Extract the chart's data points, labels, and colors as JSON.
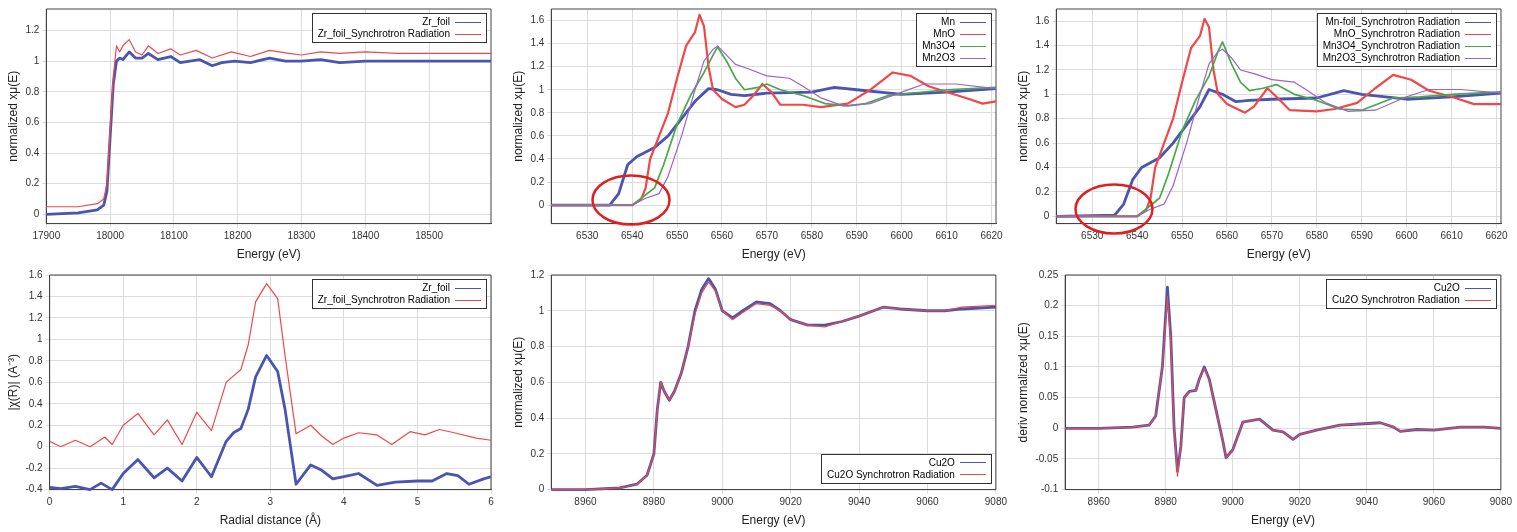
{
  "chart_data": [
    {
      "type": "line",
      "xlabel": "Energy (eV)",
      "ylabel": "normalized xμ(E)",
      "xlim": [
        17900,
        18597
      ],
      "xticks": [
        17900,
        18000,
        18100,
        18200,
        18300,
        18400,
        18500
      ],
      "ylim": [
        -0.06,
        1.34
      ],
      "yticks": [
        0,
        0.2,
        0.4,
        0.6,
        0.8,
        1,
        1.2
      ],
      "grid": true,
      "legend": "top right",
      "series": [
        {
          "name": "Zr_foil",
          "color": "#4a55b0",
          "x": [
            17900,
            17950,
            17980,
            17990,
            17995,
            18000,
            18005,
            18010,
            18015,
            18020,
            18030,
            18040,
            18050,
            18060,
            18075,
            18095,
            18110,
            18125,
            18140,
            18160,
            18175,
            18195,
            18220,
            18250,
            18275,
            18300,
            18330,
            18360,
            18400,
            18450,
            18500,
            18597
          ],
          "values": [
            0,
            0.01,
            0.03,
            0.06,
            0.15,
            0.5,
            0.85,
            1,
            1.02,
            1.01,
            1.06,
            1.02,
            1.02,
            1.05,
            1.01,
            1.03,
            0.99,
            1,
            1.01,
            0.97,
            0.99,
            1,
            0.99,
            1.02,
            1,
            1,
            1.01,
            0.99,
            1,
            1,
            1,
            1
          ]
        },
        {
          "name": "Zr_foil_Synchrotron Radiation",
          "color": "#f04848",
          "x": [
            17900,
            17950,
            17980,
            17990,
            17995,
            18000,
            18005,
            18010,
            18015,
            18020,
            18030,
            18040,
            18050,
            18060,
            18075,
            18095,
            18110,
            18135,
            18160,
            18190,
            18220,
            18250,
            18280,
            18300,
            18330,
            18360,
            18400,
            18450,
            18500,
            18597
          ],
          "values": [
            0.05,
            0.05,
            0.07,
            0.1,
            0.2,
            0.55,
            0.9,
            1.1,
            1.06,
            1.1,
            1.14,
            1.06,
            1.04,
            1.1,
            1.05,
            1.08,
            1.04,
            1.07,
            1.02,
            1.06,
            1.03,
            1.07,
            1.05,
            1.04,
            1.06,
            1.05,
            1.06,
            1.05,
            1.05,
            1.05
          ]
        }
      ]
    },
    {
      "type": "line",
      "xlabel": "Energy (eV)",
      "ylabel": "normalized xμ(E)",
      "xlim": [
        6522,
        6621
      ],
      "xticks": [
        6530,
        6540,
        6550,
        6560,
        6570,
        6580,
        6590,
        6600,
        6610,
        6620
      ],
      "ylim": [
        -0.16,
        1.7
      ],
      "yticks": [
        0,
        0.2,
        0.4,
        0.6,
        0.8,
        1,
        1.2,
        1.4,
        1.6
      ],
      "grid": true,
      "legend": "top right",
      "series": [
        {
          "name": "Mn",
          "color": "#4a55b0",
          "x": [
            6522,
            6535,
            6537,
            6539,
            6541,
            6545,
            6548,
            6551,
            6554,
            6557,
            6559,
            6562,
            6565,
            6570,
            6580,
            6585,
            6590,
            6600,
            6610,
            6621
          ],
          "values": [
            0,
            0,
            0.1,
            0.35,
            0.42,
            0.5,
            0.6,
            0.75,
            0.9,
            1.01,
            1,
            0.96,
            0.95,
            0.97,
            0.98,
            1.02,
            1,
            0.96,
            0.98,
            1.01
          ]
        },
        {
          "name": "MnO",
          "color": "#f04848",
          "x": [
            6522,
            6540,
            6542,
            6543,
            6544,
            6546,
            6548,
            6550,
            6552,
            6554,
            6555,
            6556,
            6557,
            6558,
            6560,
            6563,
            6565,
            6567,
            6569,
            6571,
            6573,
            6578,
            6582,
            6588,
            6593,
            6598,
            6602,
            6606,
            6610,
            6615,
            6618,
            6621
          ],
          "values": [
            0,
            0,
            0.05,
            0.15,
            0.4,
            0.6,
            0.8,
            1.1,
            1.38,
            1.5,
            1.65,
            1.55,
            1.2,
            1,
            0.92,
            0.85,
            0.87,
            0.95,
            1.05,
            0.98,
            0.87,
            0.87,
            0.85,
            0.88,
            1,
            1.15,
            1.12,
            1.03,
            0.98,
            0.92,
            0.88,
            0.9
          ]
        },
        {
          "name": "Mn3O4",
          "color": "#4aa84a",
          "x": [
            6522,
            6540,
            6542,
            6545,
            6547,
            6550,
            6553,
            6556,
            6558,
            6559,
            6561,
            6563,
            6565,
            6568,
            6570,
            6573,
            6578,
            6583,
            6588,
            6592,
            6597,
            6602,
            6610,
            6621
          ],
          "values": [
            0,
            0,
            0.06,
            0.15,
            0.35,
            0.7,
            0.95,
            1.15,
            1.3,
            1.37,
            1.25,
            1.1,
            1,
            1.02,
            1.05,
            1,
            0.95,
            0.88,
            0.86,
            0.88,
            0.95,
            0.97,
            1,
            1.02
          ]
        },
        {
          "name": "Mn2O3",
          "color": "#9a64c8",
          "x": [
            6522,
            6540,
            6543,
            6546,
            6548,
            6551,
            6554,
            6556,
            6558,
            6559,
            6561,
            6563,
            6566,
            6570,
            6575,
            6578,
            6582,
            6587,
            6593,
            6600,
            6605,
            6612,
            6621
          ],
          "values": [
            0,
            0,
            0.06,
            0.1,
            0.25,
            0.6,
            1,
            1.25,
            1.35,
            1.38,
            1.3,
            1.22,
            1.18,
            1.12,
            1.1,
            1.03,
            0.93,
            0.86,
            0.88,
            0.98,
            1.05,
            1.05,
            1.01
          ]
        }
      ]
    },
    {
      "type": "line",
      "xlabel": "Energy (eV)",
      "ylabel": "normalized xμ(E)",
      "xlim": [
        6522,
        6621
      ],
      "xticks": [
        6530,
        6540,
        6550,
        6560,
        6570,
        6580,
        6590,
        6600,
        6610,
        6620
      ],
      "ylim": [
        -0.06,
        1.7
      ],
      "yticks": [
        0,
        0.2,
        0.4,
        0.6,
        0.8,
        1,
        1.2,
        1.4,
        1.6
      ],
      "grid": true,
      "legend": "top right",
      "series": [
        {
          "name": "Mn-foil_Synchrotron Radiation",
          "color": "#4a55b0",
          "x": [
            6522,
            6535,
            6537,
            6539,
            6541,
            6545,
            6548,
            6551,
            6554,
            6556,
            6559,
            6562,
            6565,
            6570,
            6580,
            6586,
            6590,
            6600,
            6610,
            6621
          ],
          "values": [
            0,
            0.01,
            0.1,
            0.3,
            0.4,
            0.48,
            0.6,
            0.75,
            0.9,
            1.04,
            1,
            0.94,
            0.95,
            0.96,
            0.97,
            1.03,
            1,
            0.96,
            0.98,
            1.01
          ]
        },
        {
          "name": "MnO_Synchrotron Radiation",
          "color": "#f04848",
          "x": [
            6522,
            6540,
            6542,
            6543,
            6544,
            6546,
            6548,
            6550,
            6552,
            6554,
            6555,
            6556,
            6557,
            6558,
            6560,
            6564,
            6566,
            6568,
            6569,
            6571,
            6574,
            6580,
            6584,
            6589,
            6593,
            6597,
            6601,
            6605,
            6610,
            6615,
            6621
          ],
          "values": [
            0,
            0,
            0.05,
            0.15,
            0.4,
            0.6,
            0.8,
            1.1,
            1.38,
            1.48,
            1.62,
            1.55,
            1.2,
            1,
            0.92,
            0.85,
            0.9,
            1,
            1.05,
            0.98,
            0.87,
            0.86,
            0.88,
            0.93,
            1.05,
            1.16,
            1.12,
            1.03,
            0.98,
            0.92,
            0.92
          ]
        },
        {
          "name": "Mn3O4_Synchrotron Radiation",
          "color": "#4aa84a",
          "x": [
            6522,
            6540,
            6542,
            6545,
            6547,
            6550,
            6553,
            6556,
            6558,
            6559,
            6561,
            6563,
            6565,
            6568,
            6571,
            6575,
            6580,
            6585,
            6590,
            6597,
            6603,
            6610,
            6621
          ],
          "values": [
            0,
            0,
            0.06,
            0.15,
            0.35,
            0.7,
            0.95,
            1.15,
            1.35,
            1.43,
            1.25,
            1.1,
            1.03,
            1.05,
            1.08,
            1,
            0.95,
            0.88,
            0.87,
            0.97,
            0.98,
            1,
            1.02
          ]
        },
        {
          "name": "Mn2O3_Synchrotron Radiation",
          "color": "#9a64c8",
          "x": [
            6522,
            6540,
            6543,
            6546,
            6548,
            6551,
            6554,
            6556,
            6558,
            6559,
            6561,
            6563,
            6566,
            6570,
            6575,
            6578,
            6582,
            6587,
            6593,
            6600,
            6605,
            6612,
            6621
          ],
          "values": [
            0,
            0,
            0.06,
            0.1,
            0.25,
            0.6,
            1,
            1.25,
            1.35,
            1.37,
            1.3,
            1.2,
            1.17,
            1.12,
            1.1,
            1.03,
            0.93,
            0.86,
            0.87,
            0.98,
            1.04,
            1.04,
            1.01
          ]
        }
      ]
    },
    {
      "type": "line",
      "xlabel": "Radial distance (Å)",
      "ylabel": "|χ(R)| (A⁻³)",
      "xlim": [
        0,
        6
      ],
      "xticks": [
        0,
        1,
        2,
        3,
        4,
        5,
        6
      ],
      "ylim": [
        -0.4,
        1.6
      ],
      "yticks": [
        -0.4,
        -0.2,
        0,
        0.2,
        0.4,
        0.6,
        0.8,
        1,
        1.2,
        1.4,
        1.6
      ],
      "grid": true,
      "legend": "top right",
      "series": [
        {
          "name": "Zr_foil",
          "color": "#4a55b0",
          "x": [
            0,
            0.15,
            0.35,
            0.55,
            0.7,
            0.85,
            1,
            1.2,
            1.42,
            1.6,
            1.8,
            2,
            2.2,
            2.4,
            2.5,
            2.6,
            2.7,
            2.8,
            2.95,
            3.1,
            3.2,
            3.35,
            3.55,
            3.7,
            3.85,
            4,
            4.2,
            4.45,
            4.7,
            5,
            5.2,
            5.4,
            5.55,
            5.7,
            5.9,
            6
          ],
          "values": [
            -0.38,
            -0.39,
            -0.37,
            -0.4,
            -0.34,
            -0.4,
            -0.25,
            -0.12,
            -0.29,
            -0.2,
            -0.32,
            -0.1,
            -0.28,
            0.05,
            0.13,
            0.17,
            0.35,
            0.65,
            0.85,
            0.7,
            0.35,
            -0.35,
            -0.17,
            -0.22,
            -0.3,
            -0.28,
            -0.25,
            -0.36,
            -0.33,
            -0.32,
            -0.32,
            -0.25,
            -0.27,
            -0.35,
            -0.3,
            -0.28
          ]
        },
        {
          "name": "Zr_foil_Synchrotron Radiation",
          "color": "#f04848",
          "x": [
            0,
            0.15,
            0.35,
            0.55,
            0.75,
            0.85,
            1,
            1.2,
            1.42,
            1.6,
            1.8,
            2,
            2.2,
            2.4,
            2.5,
            2.6,
            2.7,
            2.8,
            2.95,
            3.1,
            3.2,
            3.35,
            3.55,
            3.7,
            3.85,
            4,
            4.2,
            4.45,
            4.65,
            4.9,
            5.1,
            5.3,
            5.5,
            5.8,
            6
          ],
          "values": [
            0.05,
            0,
            0.06,
            0,
            0.09,
            0.02,
            0.2,
            0.31,
            0.11,
            0.25,
            0.02,
            0.32,
            0.15,
            0.6,
            0.66,
            0.72,
            0.95,
            1.35,
            1.52,
            1.38,
            0.85,
            0.12,
            0.2,
            0.1,
            0.02,
            0.08,
            0.13,
            0.11,
            0.02,
            0.14,
            0.11,
            0.16,
            0.13,
            0.08,
            0.06
          ]
        }
      ]
    },
    {
      "type": "line",
      "xlabel": "Energy (eV)",
      "ylabel": "normalized xμ(E)",
      "xlim": [
        8950,
        9080
      ],
      "xticks": [
        8960,
        8980,
        9000,
        9020,
        9040,
        9060,
        9080
      ],
      "ylim": [
        0,
        1.2
      ],
      "yticks": [
        0,
        0.2,
        0.4,
        0.6,
        0.8,
        1,
        1.2
      ],
      "grid": true,
      "legend": "bottom right",
      "series": [
        {
          "name": "Cu2O",
          "color": "#4a55b0",
          "x": [
            8950,
            8960,
            8970,
            8975,
            8978,
            8980,
            8981,
            8982,
            8983,
            8984.5,
            8986,
            8988,
            8990,
            8992,
            8994,
            8996,
            8998,
            9000,
            9003,
            9006,
            9010,
            9014,
            9017,
            9020,
            9025,
            9030,
            9035,
            9040,
            9047,
            9052,
            9060,
            9065,
            9070,
            9080
          ],
          "values": [
            0,
            0,
            0.01,
            0.03,
            0.08,
            0.2,
            0.45,
            0.6,
            0.55,
            0.5,
            0.55,
            0.65,
            0.8,
            1,
            1.12,
            1.18,
            1.12,
            1,
            0.96,
            1,
            1.05,
            1.04,
            1,
            0.95,
            0.92,
            0.92,
            0.94,
            0.97,
            1.02,
            1.01,
            1,
            1,
            1.01,
            1.02
          ]
        },
        {
          "name": "Cu2O Synchrotron Radiation",
          "color": "#f04848",
          "x": [
            8950,
            8960,
            8970,
            8975,
            8978,
            8980,
            8981,
            8982,
            8983,
            8984.5,
            8986,
            8988,
            8990,
            8992,
            8994,
            8996,
            8998,
            9000,
            9003,
            9006,
            9010,
            9014,
            9017,
            9020,
            9025,
            9030,
            9035,
            9040,
            9047,
            9052,
            9060,
            9065,
            9070,
            9080
          ],
          "values": [
            0,
            0,
            0.01,
            0.03,
            0.08,
            0.2,
            0.45,
            0.6,
            0.55,
            0.5,
            0.55,
            0.65,
            0.8,
            0.98,
            1.1,
            1.16,
            1.11,
            1,
            0.95,
            0.99,
            1.04,
            1.03,
            1,
            0.95,
            0.92,
            0.91,
            0.94,
            0.97,
            1.02,
            1.01,
            1,
            1,
            1.02,
            1.03
          ]
        }
      ]
    },
    {
      "type": "line",
      "xlabel": "Energy (eV)",
      "ylabel": "deriv normalized xμ(E)",
      "xlim": [
        8950,
        9080
      ],
      "xticks": [
        8960,
        8980,
        9000,
        9020,
        9040,
        9060,
        9080
      ],
      "ylim": [
        -0.1,
        0.25
      ],
      "yticks": [
        -0.1,
        -0.05,
        0,
        0.05,
        0.1,
        0.15,
        0.2,
        0.25
      ],
      "grid": true,
      "legend": "top right",
      "series": [
        {
          "name": "Cu2O",
          "color": "#4a55b0",
          "x": [
            8950,
            8960,
            8970,
            8975,
            8977,
            8979,
            8980.5,
            8981.5,
            8982.5,
            8983.5,
            8984.5,
            8985.5,
            8987,
            8989,
            8990,
            8991.5,
            8993,
            8995,
            8997,
            8998,
            9000,
            9003,
            9005,
            9008,
            9012,
            9015,
            9018,
            9020,
            9025,
            9032,
            9038,
            9044,
            9048,
            9050,
            9055,
            9060,
            9068,
            9075,
            9080
          ],
          "values": [
            0,
            0,
            0.002,
            0.005,
            0.02,
            0.1,
            0.23,
            0.15,
            0,
            -0.07,
            -0.03,
            0.05,
            0.06,
            0.062,
            0.08,
            0.1,
            0.08,
            0.03,
            -0.02,
            -0.048,
            -0.035,
            0.01,
            0.012,
            0.015,
            -0.003,
            -0.006,
            -0.018,
            -0.01,
            -0.003,
            0.005,
            0.007,
            0.009,
            0.002,
            -0.005,
            -0.002,
            -0.003,
            0.002,
            0.002,
            0
          ]
        },
        {
          "name": "Cu2O Synchrotron Radiation",
          "color": "#f04848",
          "x": [
            8950,
            8960,
            8970,
            8975,
            8977,
            8979,
            8980.5,
            8981.5,
            8982.5,
            8983.5,
            8984.5,
            8985.5,
            8987,
            8989,
            8990,
            8991.5,
            8993,
            8995,
            8997,
            8998,
            9000,
            9003,
            9005,
            9008,
            9012,
            9015,
            9018,
            9020,
            9025,
            9032,
            9038,
            9044,
            9048,
            9050,
            9055,
            9060,
            9068,
            9075,
            9080
          ],
          "values": [
            0,
            0,
            0.002,
            0.005,
            0.02,
            0.1,
            0.215,
            0.14,
            0,
            -0.078,
            -0.03,
            0.05,
            0.06,
            0.062,
            0.08,
            0.098,
            0.08,
            0.03,
            -0.02,
            -0.048,
            -0.035,
            0.01,
            0.012,
            0.015,
            -0.003,
            -0.006,
            -0.018,
            -0.01,
            -0.003,
            0.005,
            0.007,
            0.009,
            0.002,
            -0.005,
            -0.002,
            -0.003,
            0.002,
            0.002,
            0
          ]
        }
      ]
    }
  ]
}
